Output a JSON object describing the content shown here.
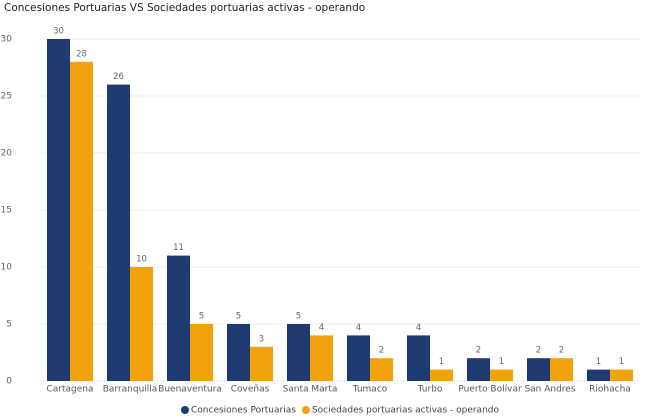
{
  "chart_data": {
    "type": "bar",
    "title": "Concesiones Portuarias VS Sociedades portuarias activas - operando",
    "categories": [
      "Cartagena",
      "Barranquilla",
      "Buenaventura",
      "Coveñas",
      "Santa Marta",
      "Tumaco",
      "Turbo",
      "Puerto Bolívar",
      "San Andres",
      "Riohacha"
    ],
    "series": [
      {
        "name": "Concesiones Portuarias",
        "color": "#1f3a70",
        "values": [
          30,
          26,
          11,
          5,
          5,
          4,
          4,
          2,
          2,
          1
        ]
      },
      {
        "name": "Sociedades portuarias activas - operando",
        "color": "#f2a20c",
        "values": [
          28,
          10,
          5,
          3,
          4,
          2,
          1,
          1,
          2,
          1
        ]
      }
    ],
    "ylim": [
      0,
      30
    ],
    "yticks": [
      0,
      5,
      10,
      15,
      20,
      25,
      30
    ],
    "grid": true,
    "legend": "bottom"
  }
}
